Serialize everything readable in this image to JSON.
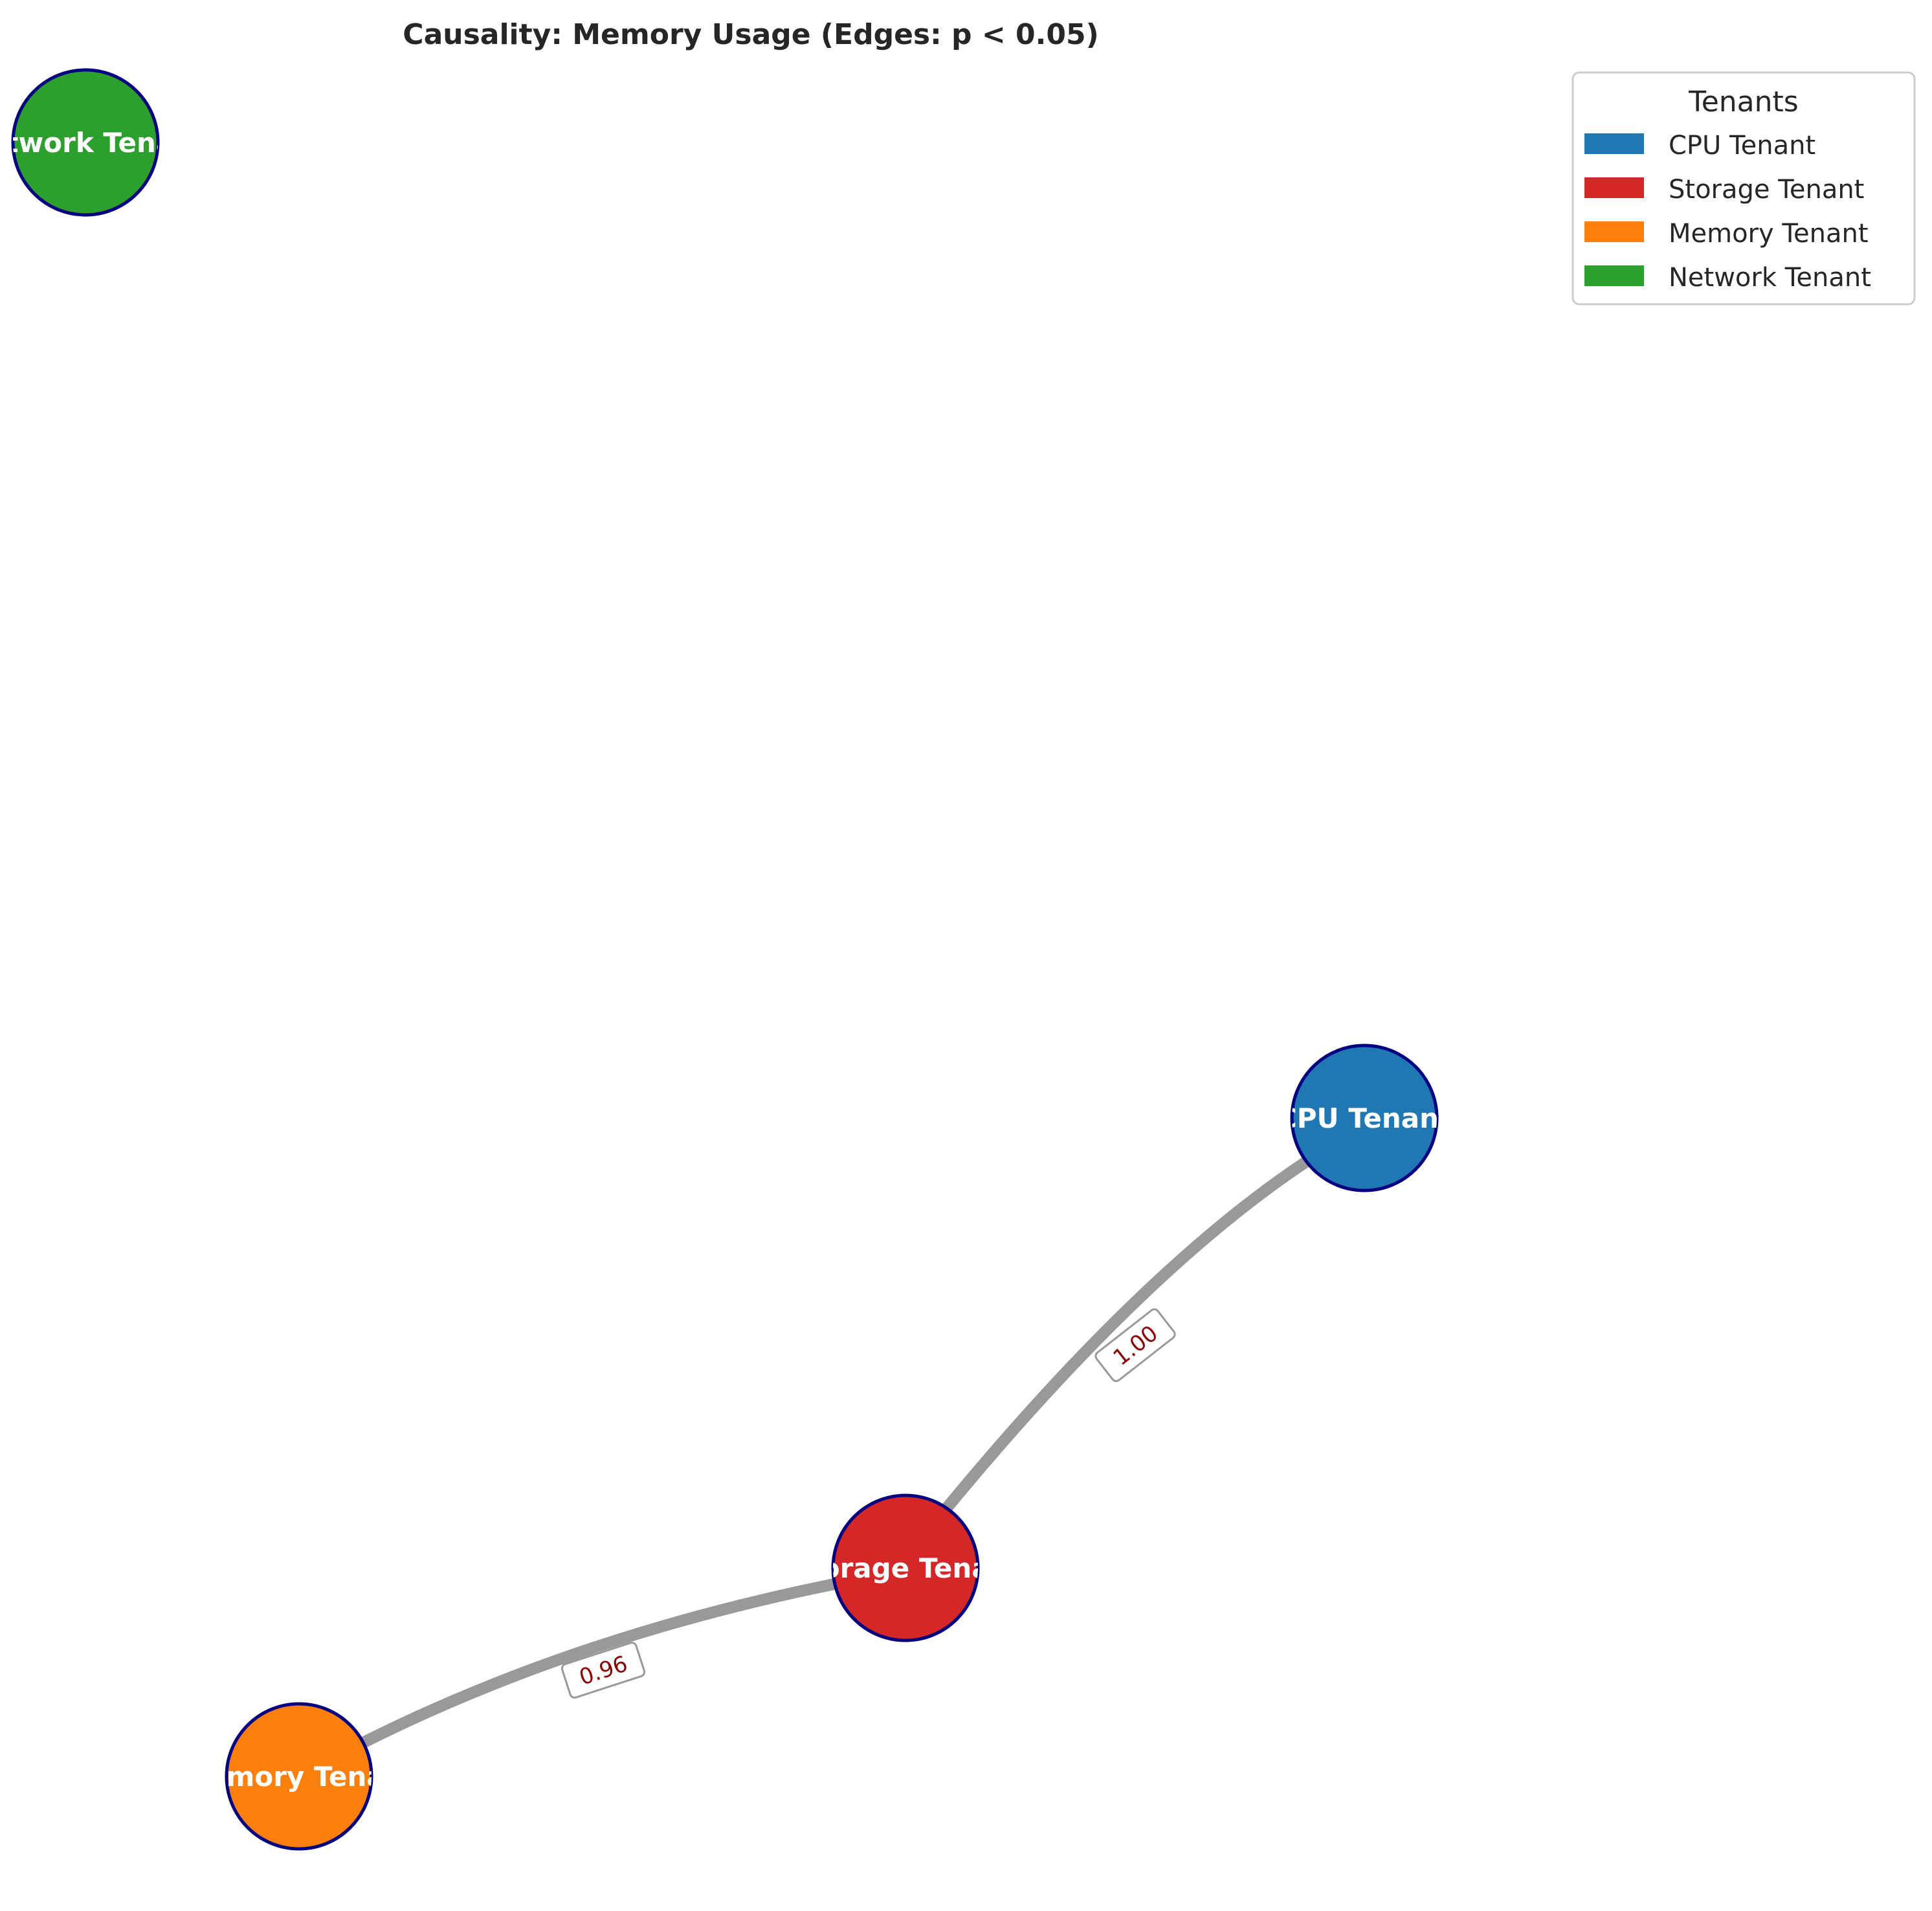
{
  "title": "Causality: Memory Usage (Edges: p < 0.05)",
  "nodes": [
    {
      "id": "network",
      "label": "Network Tenant",
      "color": "#2ca02c"
    },
    {
      "id": "cpu",
      "label": "CPU Tenant",
      "color": "#1f77b4"
    },
    {
      "id": "storage",
      "label": "Storage Tenant",
      "color": "#d62728"
    },
    {
      "id": "memory",
      "label": "Memory Tenant",
      "color": "#ff7f0e"
    }
  ],
  "edges": [
    {
      "source": "cpu",
      "target": "storage",
      "label": "1.00"
    },
    {
      "source": "storage",
      "target": "memory",
      "label": "0.96"
    }
  ],
  "colors": {
    "node_border": "#000080",
    "edge": "#999999",
    "edge_label_text": "#8b0000"
  },
  "legend": {
    "title": "Tenants",
    "placement": "top-right",
    "items": [
      {
        "label": "CPU Tenant",
        "color": "#1f77b4"
      },
      {
        "label": "Storage Tenant",
        "color": "#d62728"
      },
      {
        "label": "Memory Tenant",
        "color": "#ff7f0e"
      },
      {
        "label": "Network Tenant",
        "color": "#2ca02c"
      }
    ]
  }
}
